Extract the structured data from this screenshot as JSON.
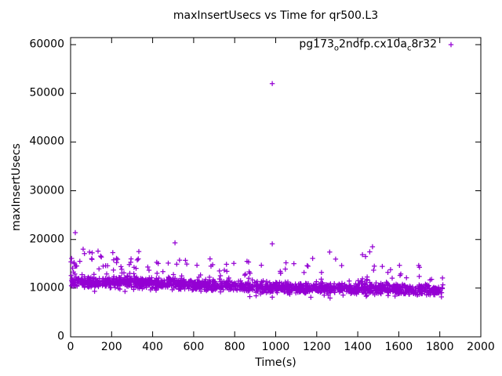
{
  "chart_data": {
    "type": "scatter",
    "title": "maxInsertUsecs vs Time for qr500.L3",
    "xlabel": "Time(s)",
    "ylabel": "maxInsertUsecs",
    "xlim": [
      0,
      2000
    ],
    "ylim": [
      0,
      61450
    ],
    "xticks": [
      0,
      200,
      400,
      600,
      800,
      1000,
      1200,
      1400,
      1600,
      1800,
      2000
    ],
    "yticks": [
      0,
      10000,
      20000,
      30000,
      40000,
      50000,
      60000
    ],
    "grid": false,
    "background_color": "#ffffff",
    "axis_color": "#000000",
    "legend_position": "top-right-inside",
    "series": [
      {
        "name": "pg173_o2nofp.cx10a_c8r32",
        "label_parts": [
          {
            "text": "pg173"
          },
          {
            "text": "o",
            "subscript": true
          },
          {
            "text": "2nofp.cx10a"
          },
          {
            "text": "c",
            "subscript": true
          },
          {
            "text": "8r32"
          }
        ],
        "color": "#9400d3",
        "marker": "plus",
        "seed": 20,
        "outliers": [
          [
            983,
            52000
          ],
          [
            23,
            21400
          ],
          [
            509,
            19300
          ],
          [
            983,
            19100
          ],
          [
            1472,
            18500
          ],
          [
            61,
            18000
          ],
          [
            92,
            17400
          ],
          [
            134,
            17600
          ],
          [
            1263,
            17400
          ],
          [
            1292,
            15950
          ],
          [
            2,
            15400
          ],
          [
            5,
            16100
          ],
          [
            9,
            14100
          ],
          [
            14,
            13300
          ],
          [
            18,
            15000
          ],
          [
            3,
            12600
          ],
          [
            7,
            11900
          ],
          [
            45,
            15500
          ],
          [
            150,
            16400
          ],
          [
            210,
            15800
          ],
          [
            330,
            16000
          ],
          [
            680,
            16000
          ],
          [
            860,
            15500
          ],
          [
            1050,
            15200
          ],
          [
            1180,
            16100
          ],
          [
            420,
            15300
          ],
          [
            560,
            15700
          ],
          [
            760,
            14900
          ],
          [
            930,
            14700
          ],
          [
            1560,
            13800
          ],
          [
            1610,
            12900
          ],
          [
            1700,
            12400
          ],
          [
            1760,
            11800
          ]
        ],
        "band": {
          "comment": "dense band of per-second samples",
          "x_range": [
            2,
            1815
          ],
          "count": 1500,
          "y_center_start": 11300,
          "y_center_end": 9400,
          "y_spread": 520
        },
        "mid_scatter": {
          "count": 120,
          "offset_above_center": [
            900,
            5200
          ]
        },
        "high_scatter": {
          "count": 12,
          "x_range": [
            60,
            1500
          ],
          "y_range": [
            15600,
            17800
          ]
        },
        "low_scatter": {
          "count": 18,
          "offset_below_center": [
            900,
            2400
          ]
        }
      }
    ]
  }
}
